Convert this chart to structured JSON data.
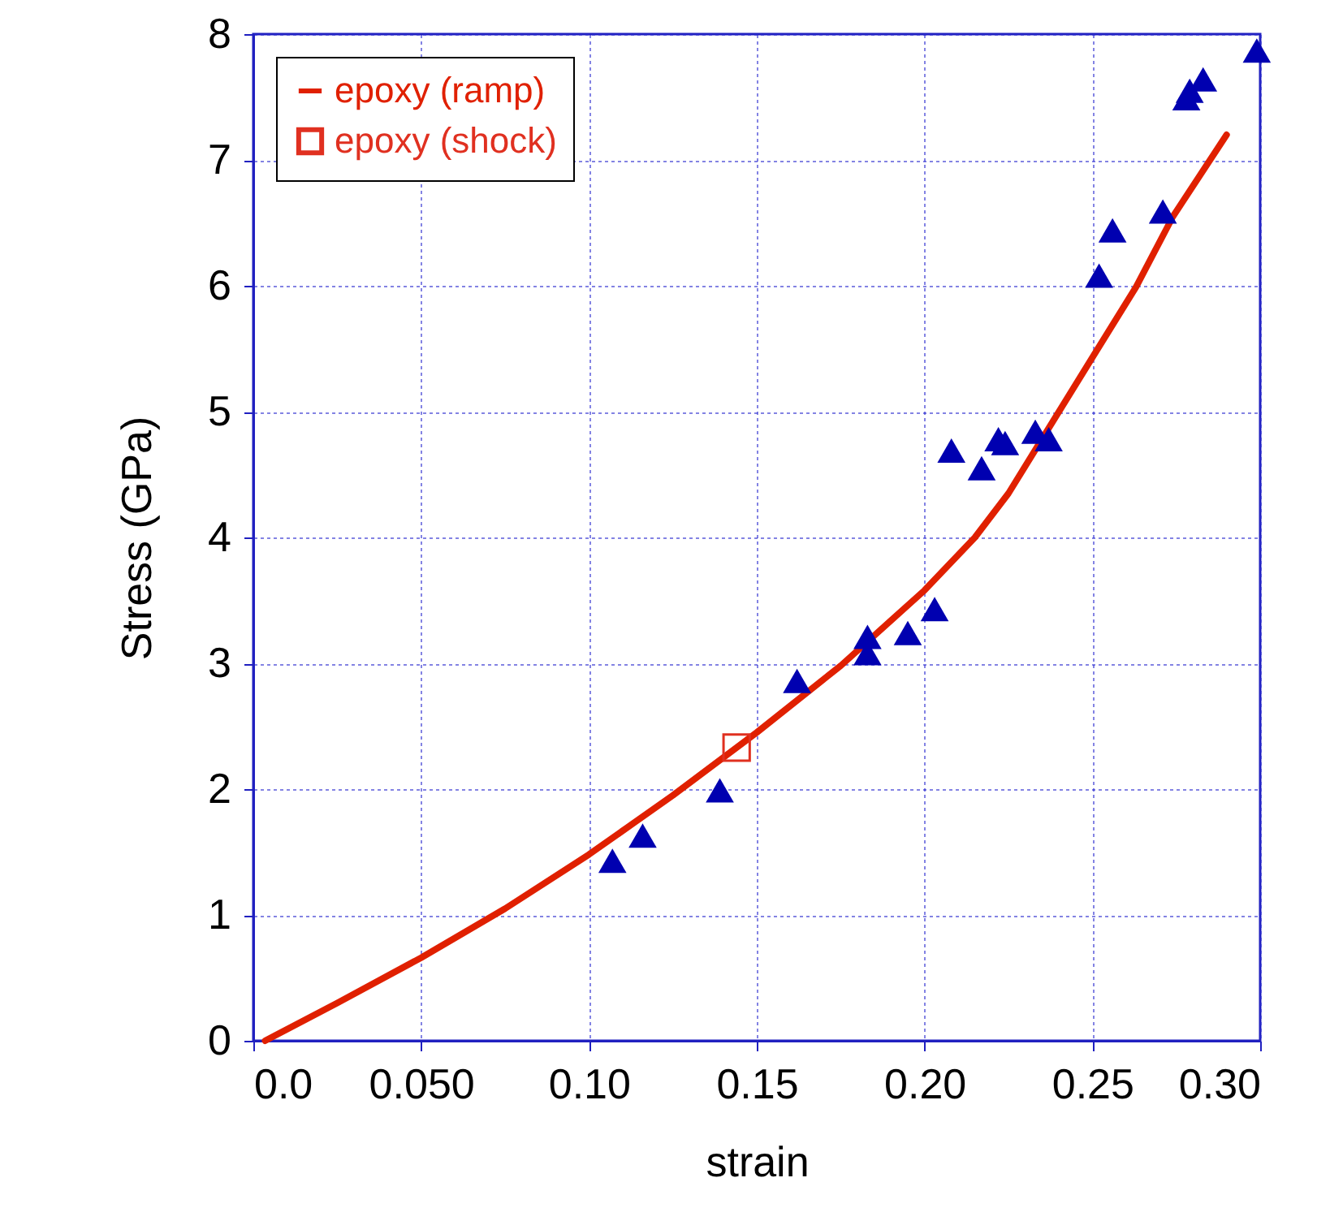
{
  "chart_data": {
    "type": "scatter",
    "xlabel": "strain",
    "ylabel": "Stress (GPa)",
    "xlim": [
      0,
      0.3
    ],
    "ylim": [
      0,
      8
    ],
    "xticks": [
      {
        "value": 0,
        "label": "0.0"
      },
      {
        "value": 0.05,
        "label": "0.050"
      },
      {
        "value": 0.1,
        "label": "0.10"
      },
      {
        "value": 0.15,
        "label": "0.15"
      },
      {
        "value": 0.2,
        "label": "0.20"
      },
      {
        "value": 0.25,
        "label": "0.25"
      },
      {
        "value": 0.3,
        "label": "0.30"
      }
    ],
    "yticks": [
      0,
      1,
      2,
      3,
      4,
      5,
      6,
      7,
      8
    ],
    "grid": true,
    "legend": "top left",
    "series": [
      {
        "name": "epoxy (ramp)",
        "type": "line",
        "color": "#e02000",
        "marker": "none",
        "x": [
          0.0035,
          0.025,
          0.05,
          0.075,
          0.1,
          0.125,
          0.15,
          0.175,
          0.2,
          0.215,
          0.225,
          0.25,
          0.263,
          0.274,
          0.29
        ],
        "values": [
          0,
          0.3,
          0.66,
          1.05,
          1.48,
          1.95,
          2.45,
          2.98,
          3.58,
          4.0,
          4.35,
          5.43,
          5.99,
          6.55,
          7.2
        ]
      },
      {
        "name": "epoxy (shock)",
        "type": "scatter",
        "color": "#e03020",
        "marker": "square",
        "x": [
          0.144
        ],
        "values": [
          2.33
        ]
      },
      {
        "color": "#0000b0",
        "marker": "triangle",
        "x": [
          0.107,
          0.116,
          0.139,
          0.162,
          0.183,
          0.183,
          0.195,
          0.203,
          0.208,
          0.217,
          0.222,
          0.224,
          0.233,
          0.237,
          0.252,
          0.256,
          0.271,
          0.278,
          0.279,
          0.283,
          0.299
        ],
        "values": [
          1.43,
          1.63,
          1.99,
          2.86,
          3.21,
          3.08,
          3.24,
          3.43,
          4.69,
          4.55,
          4.78,
          4.75,
          4.84,
          4.78,
          6.08,
          6.44,
          6.59,
          7.49,
          7.55,
          7.64,
          7.87
        ]
      }
    ]
  }
}
